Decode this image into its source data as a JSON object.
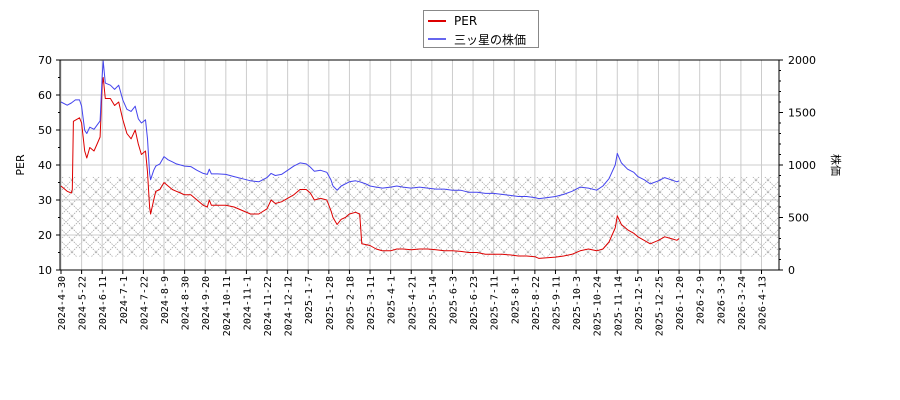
{
  "legend": {
    "items": [
      {
        "label": "PER",
        "color": "#dd0000"
      },
      {
        "label": "三ッ星の株価",
        "color": "#3333dd"
      }
    ]
  },
  "axes": {
    "left_title": "PER",
    "right_title": "株価"
  },
  "chart_data": {
    "type": "line",
    "title": "",
    "xlabel": "",
    "ylabel": "PER",
    "y2label": "株価",
    "ylim": [
      10,
      70
    ],
    "y2lim": [
      0,
      2000
    ],
    "grid": true,
    "legend_position": "top-center",
    "yticks": [
      10,
      20,
      30,
      40,
      50,
      60,
      70
    ],
    "y2ticks": [
      0,
      500,
      1000,
      1500,
      2000
    ],
    "categories": [
      "2024-4-30",
      "2024-5-22",
      "2024-6-11",
      "2024-7-1",
      "2024-7-22",
      "2024-8-9",
      "2024-8-30",
      "2024-9-20",
      "2024-10-11",
      "2024-11-1",
      "2024-11-22",
      "2024-12-12",
      "2025-1-7",
      "2025-1-28",
      "2025-2-18",
      "2025-3-11",
      "2025-4-1",
      "2025-4-21",
      "2025-5-14",
      "2025-6-3",
      "2025-6-23",
      "2025-7-11",
      "2025-8-1",
      "2025-8-22",
      "2025-9-11",
      "2025-10-3",
      "2025-10-24",
      "2025-11-14",
      "2025-12-5",
      "2025-12-25",
      "2026-1-20",
      "2026-2-9",
      "2026-3-3",
      "2026-3-24",
      "2026-4-13"
    ],
    "shaded_band": {
      "per_from": 13.8,
      "per_to": 36.6,
      "style": "crosshatch"
    },
    "series": [
      {
        "name": "PER",
        "axis": "left",
        "color": "#dd0000",
        "points": [
          [
            0,
            34
          ],
          [
            0.3,
            32.5
          ],
          [
            0.5,
            32
          ],
          [
            0.55,
            33
          ],
          [
            0.6,
            52.5
          ],
          [
            0.9,
            53.5
          ],
          [
            1.0,
            52
          ],
          [
            1.15,
            44
          ],
          [
            1.25,
            42
          ],
          [
            1.4,
            45
          ],
          [
            1.6,
            44
          ],
          [
            1.75,
            46
          ],
          [
            1.9,
            48
          ],
          [
            2.0,
            63
          ],
          [
            2.05,
            65
          ],
          [
            2.15,
            59
          ],
          [
            2.4,
            59
          ],
          [
            2.6,
            57
          ],
          [
            2.8,
            58
          ],
          [
            3.0,
            53
          ],
          [
            3.2,
            49
          ],
          [
            3.4,
            47.5
          ],
          [
            3.6,
            50
          ],
          [
            3.75,
            46
          ],
          [
            3.9,
            43
          ],
          [
            4.1,
            44
          ],
          [
            4.2,
            38
          ],
          [
            4.3,
            28
          ],
          [
            4.35,
            26
          ],
          [
            4.5,
            30
          ],
          [
            4.6,
            32.5
          ],
          [
            4.8,
            33
          ],
          [
            5.0,
            35
          ],
          [
            5.2,
            34
          ],
          [
            5.4,
            33
          ],
          [
            5.6,
            32.5
          ],
          [
            5.8,
            32
          ],
          [
            6.0,
            31.5
          ],
          [
            6.3,
            31.5
          ],
          [
            6.6,
            30
          ],
          [
            6.9,
            28.5
          ],
          [
            7.1,
            28
          ],
          [
            7.2,
            30
          ],
          [
            7.3,
            28.5
          ],
          [
            7.6,
            28.5
          ],
          [
            8.0,
            28.5
          ],
          [
            8.4,
            28
          ],
          [
            8.8,
            27
          ],
          [
            9.2,
            26
          ],
          [
            9.6,
            26
          ],
          [
            10.0,
            27.5
          ],
          [
            10.2,
            30
          ],
          [
            10.4,
            29
          ],
          [
            10.7,
            29.5
          ],
          [
            11.0,
            30.5
          ],
          [
            11.3,
            31.5
          ],
          [
            11.6,
            33
          ],
          [
            11.9,
            33
          ],
          [
            12.1,
            32
          ],
          [
            12.3,
            30
          ],
          [
            12.6,
            30.5
          ],
          [
            12.9,
            30
          ],
          [
            13.1,
            27
          ],
          [
            13.2,
            25
          ],
          [
            13.4,
            23
          ],
          [
            13.6,
            24.5
          ],
          [
            13.8,
            25
          ],
          [
            14.0,
            26
          ],
          [
            14.3,
            26.5
          ],
          [
            14.5,
            26
          ],
          [
            14.6,
            17.5
          ],
          [
            15.0,
            17
          ],
          [
            15.3,
            16
          ],
          [
            15.6,
            15.5
          ],
          [
            16.0,
            15.5
          ],
          [
            16.3,
            16
          ],
          [
            16.6,
            16
          ],
          [
            17.0,
            15.8
          ],
          [
            17.4,
            16
          ],
          [
            17.8,
            16
          ],
          [
            18.2,
            15.8
          ],
          [
            18.6,
            15.5
          ],
          [
            19.0,
            15.5
          ],
          [
            19.4,
            15.3
          ],
          [
            19.8,
            15
          ],
          [
            20.2,
            15
          ],
          [
            20.6,
            14.5
          ],
          [
            21.0,
            14.5
          ],
          [
            21.4,
            14.5
          ],
          [
            21.8,
            14.3
          ],
          [
            22.2,
            14
          ],
          [
            22.6,
            14
          ],
          [
            23.0,
            13.8
          ],
          [
            23.2,
            13.3
          ],
          [
            23.6,
            13.5
          ],
          [
            24.0,
            13.7
          ],
          [
            24.4,
            14
          ],
          [
            24.8,
            14.5
          ],
          [
            25.2,
            15.5
          ],
          [
            25.6,
            16
          ],
          [
            26.0,
            15.5
          ],
          [
            26.3,
            16
          ],
          [
            26.6,
            18
          ],
          [
            26.9,
            22
          ],
          [
            27.0,
            25.5
          ],
          [
            27.2,
            23
          ],
          [
            27.5,
            21.5
          ],
          [
            27.8,
            20.5
          ],
          [
            28.0,
            19.5
          ],
          [
            28.3,
            18.5
          ],
          [
            28.6,
            17.5
          ],
          [
            29.0,
            18.5
          ],
          [
            29.3,
            19.5
          ],
          [
            29.6,
            19
          ],
          [
            29.9,
            18.5
          ],
          [
            30.0,
            19
          ]
        ]
      },
      {
        "name": "三ッ星の株価",
        "axis": "right",
        "color": "#3333dd",
        "points": [
          [
            0,
            1600
          ],
          [
            0.3,
            1570
          ],
          [
            0.5,
            1590
          ],
          [
            0.7,
            1620
          ],
          [
            0.9,
            1620
          ],
          [
            1.0,
            1560
          ],
          [
            1.15,
            1330
          ],
          [
            1.25,
            1300
          ],
          [
            1.4,
            1360
          ],
          [
            1.6,
            1340
          ],
          [
            1.75,
            1380
          ],
          [
            1.9,
            1420
          ],
          [
            2.0,
            1850
          ],
          [
            2.05,
            1990
          ],
          [
            2.15,
            1780
          ],
          [
            2.4,
            1760
          ],
          [
            2.6,
            1720
          ],
          [
            2.8,
            1760
          ],
          [
            3.0,
            1620
          ],
          [
            3.2,
            1530
          ],
          [
            3.4,
            1510
          ],
          [
            3.6,
            1560
          ],
          [
            3.75,
            1440
          ],
          [
            3.9,
            1400
          ],
          [
            4.1,
            1430
          ],
          [
            4.2,
            1250
          ],
          [
            4.3,
            920
          ],
          [
            4.35,
            860
          ],
          [
            4.5,
            950
          ],
          [
            4.6,
            990
          ],
          [
            4.8,
            1010
          ],
          [
            5.0,
            1080
          ],
          [
            5.2,
            1050
          ],
          [
            5.4,
            1030
          ],
          [
            5.6,
            1010
          ],
          [
            5.8,
            1000
          ],
          [
            6.0,
            990
          ],
          [
            6.3,
            985
          ],
          [
            6.6,
            950
          ],
          [
            6.9,
            920
          ],
          [
            7.1,
            910
          ],
          [
            7.2,
            960
          ],
          [
            7.3,
            915
          ],
          [
            7.6,
            915
          ],
          [
            8.0,
            910
          ],
          [
            8.4,
            890
          ],
          [
            8.8,
            870
          ],
          [
            9.2,
            850
          ],
          [
            9.6,
            840
          ],
          [
            10.0,
            880
          ],
          [
            10.2,
            920
          ],
          [
            10.4,
            900
          ],
          [
            10.7,
            910
          ],
          [
            11.0,
            950
          ],
          [
            11.3,
            990
          ],
          [
            11.6,
            1020
          ],
          [
            11.9,
            1010
          ],
          [
            12.1,
            980
          ],
          [
            12.3,
            940
          ],
          [
            12.6,
            950
          ],
          [
            12.9,
            930
          ],
          [
            13.1,
            860
          ],
          [
            13.2,
            800
          ],
          [
            13.4,
            760
          ],
          [
            13.6,
            800
          ],
          [
            13.8,
            820
          ],
          [
            14.0,
            840
          ],
          [
            14.3,
            850
          ],
          [
            14.5,
            840
          ],
          [
            14.8,
            820
          ],
          [
            15.0,
            800
          ],
          [
            15.3,
            790
          ],
          [
            15.6,
            780
          ],
          [
            16.0,
            790
          ],
          [
            16.3,
            800
          ],
          [
            16.6,
            790
          ],
          [
            17.0,
            780
          ],
          [
            17.4,
            790
          ],
          [
            17.8,
            780
          ],
          [
            18.2,
            770
          ],
          [
            18.6,
            770
          ],
          [
            19.0,
            760
          ],
          [
            19.4,
            760
          ],
          [
            19.8,
            740
          ],
          [
            20.2,
            740
          ],
          [
            20.6,
            730
          ],
          [
            21.0,
            730
          ],
          [
            21.4,
            720
          ],
          [
            21.8,
            710
          ],
          [
            22.2,
            700
          ],
          [
            22.6,
            700
          ],
          [
            23.0,
            690
          ],
          [
            23.2,
            680
          ],
          [
            23.6,
            690
          ],
          [
            24.0,
            700
          ],
          [
            24.4,
            720
          ],
          [
            24.8,
            750
          ],
          [
            25.2,
            790
          ],
          [
            25.6,
            780
          ],
          [
            26.0,
            760
          ],
          [
            26.3,
            800
          ],
          [
            26.6,
            870
          ],
          [
            26.9,
            1000
          ],
          [
            27.0,
            1110
          ],
          [
            27.2,
            1020
          ],
          [
            27.5,
            960
          ],
          [
            27.8,
            930
          ],
          [
            28.0,
            890
          ],
          [
            28.3,
            860
          ],
          [
            28.6,
            820
          ],
          [
            29.0,
            850
          ],
          [
            29.3,
            880
          ],
          [
            29.6,
            860
          ],
          [
            29.9,
            840
          ],
          [
            30.0,
            850
          ]
        ]
      }
    ]
  }
}
